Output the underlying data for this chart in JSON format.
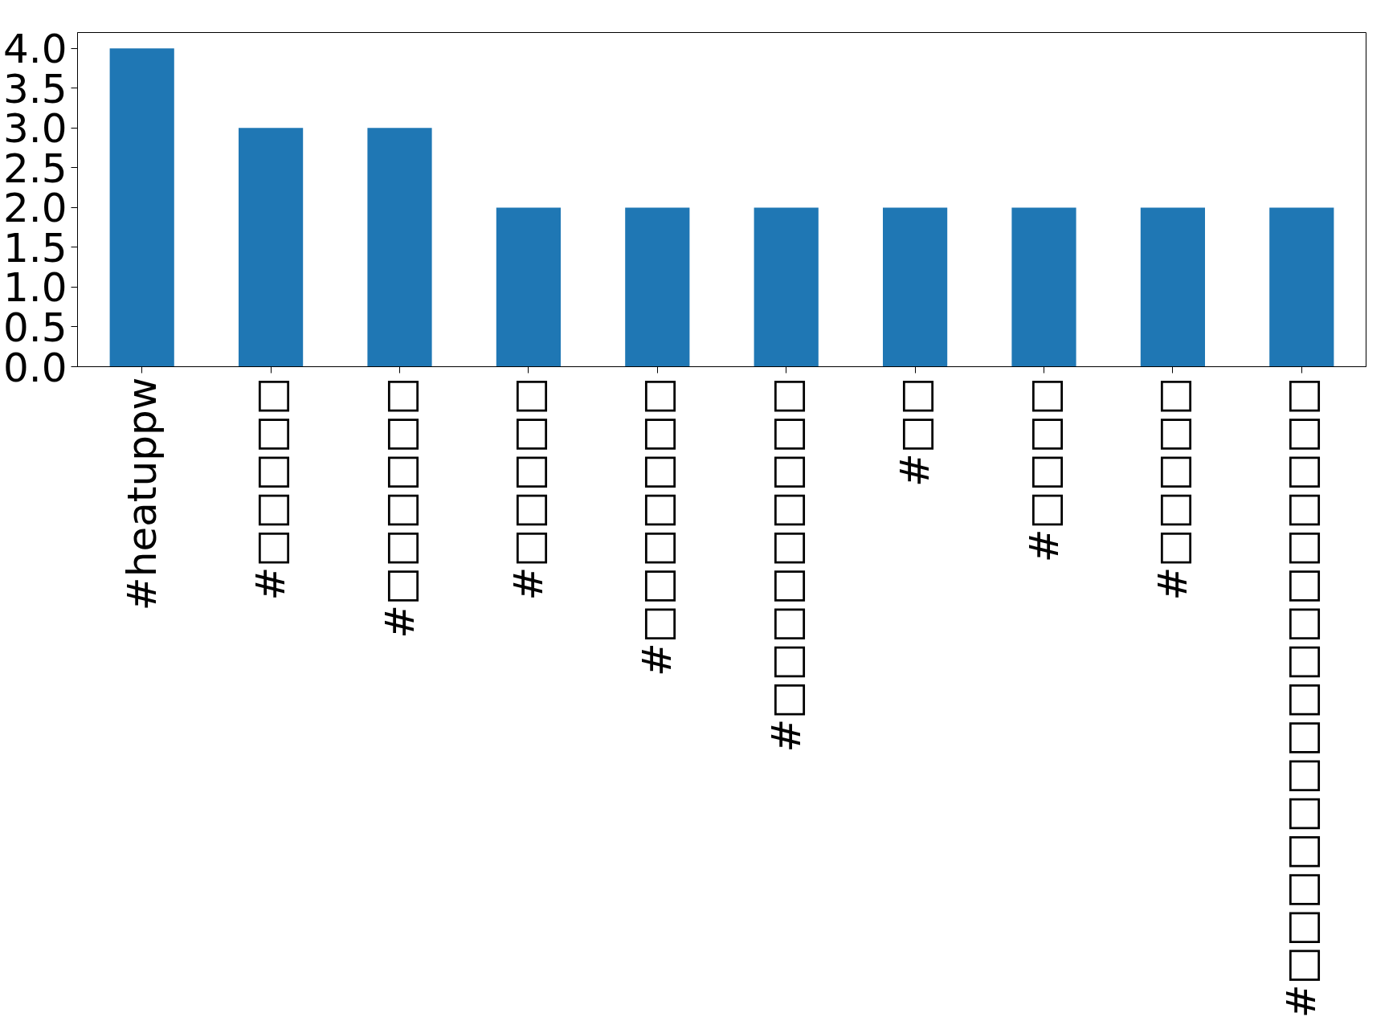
{
  "chart_data": {
    "type": "bar",
    "categories": [
      "#heatuppw",
      "#□□□□□",
      "#□□□□□□",
      "#□□□□□",
      "#□□□□□□□",
      "#□□□□□□□□□",
      "#□□",
      "#□□□□",
      "#□□□□□",
      "#□□□□□□□□□□□□□□□□"
    ],
    "values": [
      4,
      3,
      3,
      2,
      2,
      2,
      2,
      2,
      2,
      2
    ],
    "color": "#1f77b4",
    "ylim": [
      0,
      4.2
    ],
    "yticks": [
      {
        "value": 0,
        "label": "0.0"
      },
      {
        "value": 0.5,
        "label": "0.5"
      },
      {
        "value": 1,
        "label": "1.0"
      },
      {
        "value": 1.5,
        "label": "1.5"
      },
      {
        "value": 2,
        "label": "2.0"
      },
      {
        "value": 2.5,
        "label": "2.5"
      },
      {
        "value": 3,
        "label": "3.0"
      },
      {
        "value": 3.5,
        "label": "3.5"
      },
      {
        "value": 4,
        "label": "4.0"
      }
    ],
    "grid": false
  }
}
